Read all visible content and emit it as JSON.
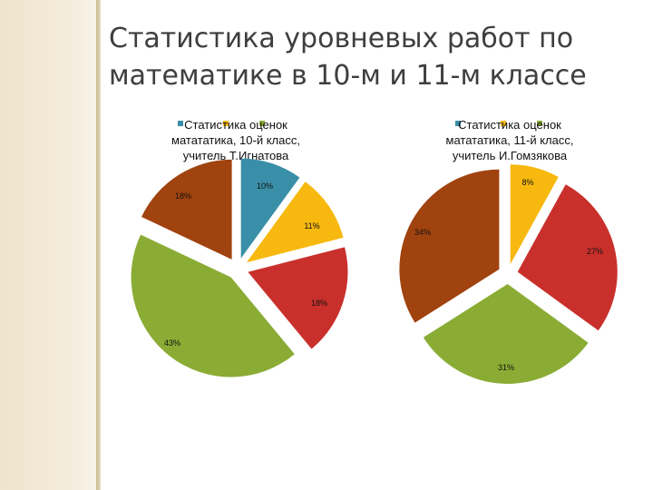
{
  "slide": {
    "title": "Статистика уровневых работ по математике в  10-м и 11-м классе"
  },
  "chart_data": [
    {
      "type": "pie",
      "title": "Статистика оценок математика, 10-й класс, учитель Т.Игнатова",
      "title_lines": [
        "Статистика оценок",
        "матататика, 10-й класс,",
        "учитель Т.Игнатова"
      ],
      "slices": [
        {
          "value": 10,
          "label": "10%",
          "color": "#3a8fa8"
        },
        {
          "value": 11,
          "label": "11%",
          "color": "#f7b90f"
        },
        {
          "value": 18,
          "label": "18%",
          "color": "#c9302c"
        },
        {
          "value": 43,
          "label": "43%",
          "color": "#8aac34"
        },
        {
          "value": 18,
          "label": "18%",
          "color": "#a0430f"
        }
      ],
      "exploded": true
    },
    {
      "type": "pie",
      "title": "Статистика оценок математика, 11-й класс, учитель И.Гомзякова",
      "title_lines": [
        "Статистика оценок",
        "матататика, 11-й класс,",
        "учитель И.Гомзякова"
      ],
      "slices": [
        {
          "value": 8,
          "label": "8%",
          "color": "#f7b90f"
        },
        {
          "value": 27,
          "label": "27%",
          "color": "#c9302c"
        },
        {
          "value": 31,
          "label": "31%",
          "color": "#8aac34"
        },
        {
          "value": 34,
          "label": "34%",
          "color": "#a0430f"
        }
      ],
      "exploded": true
    }
  ]
}
